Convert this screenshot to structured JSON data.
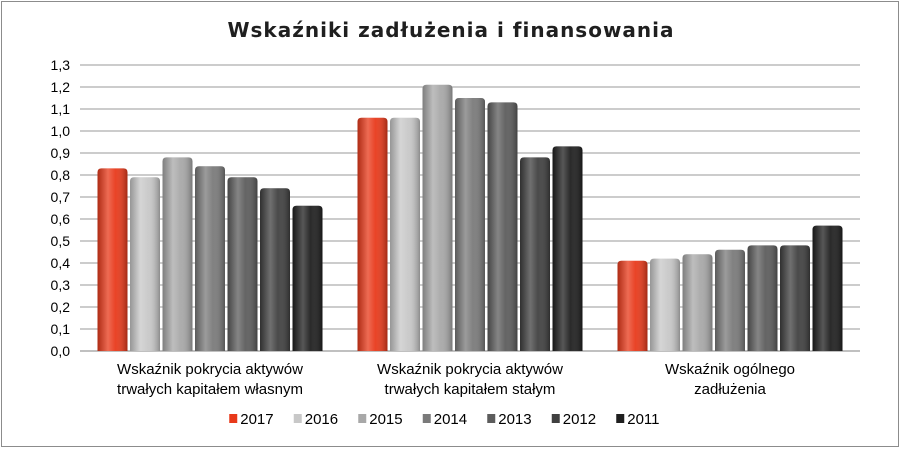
{
  "chart_data": {
    "type": "bar",
    "title": "Wskaźniki zadłużenia i finansowania",
    "xlabel": "",
    "ylabel": "",
    "ylim": [
      0,
      1.3
    ],
    "yticks": [
      "0,0",
      "0,1",
      "0,2",
      "0,3",
      "0,4",
      "0,5",
      "0,6",
      "0,7",
      "0,8",
      "0,9",
      "1,0",
      "1,1",
      "1,2",
      "1,3"
    ],
    "grid": true,
    "legend_position": "bottom",
    "categories": [
      [
        "Wskaźnik pokrycia aktywów",
        "trwałych kapitałem własnym"
      ],
      [
        "Wskaźnik pokrycia aktywów",
        "trwałych kapitałem stałym"
      ],
      [
        "Wskaźnik ogólnego",
        "zadłużenia"
      ]
    ],
    "series": [
      {
        "name": "2017",
        "color": "#e8391a",
        "values": [
          0.83,
          1.06,
          0.41
        ]
      },
      {
        "name": "2016",
        "color": "#c8c8c8",
        "values": [
          0.79,
          1.06,
          0.42
        ]
      },
      {
        "name": "2015",
        "color": "#a8a8a8",
        "values": [
          0.88,
          1.21,
          0.44
        ]
      },
      {
        "name": "2014",
        "color": "#7a7a7a",
        "values": [
          0.84,
          1.15,
          0.46
        ]
      },
      {
        "name": "2013",
        "color": "#5c5c5c",
        "values": [
          0.79,
          1.13,
          0.48
        ]
      },
      {
        "name": "2012",
        "color": "#404040",
        "values": [
          0.74,
          0.88,
          0.48
        ]
      },
      {
        "name": "2011",
        "color": "#1f1f1f",
        "values": [
          0.66,
          0.93,
          0.57
        ]
      }
    ]
  }
}
